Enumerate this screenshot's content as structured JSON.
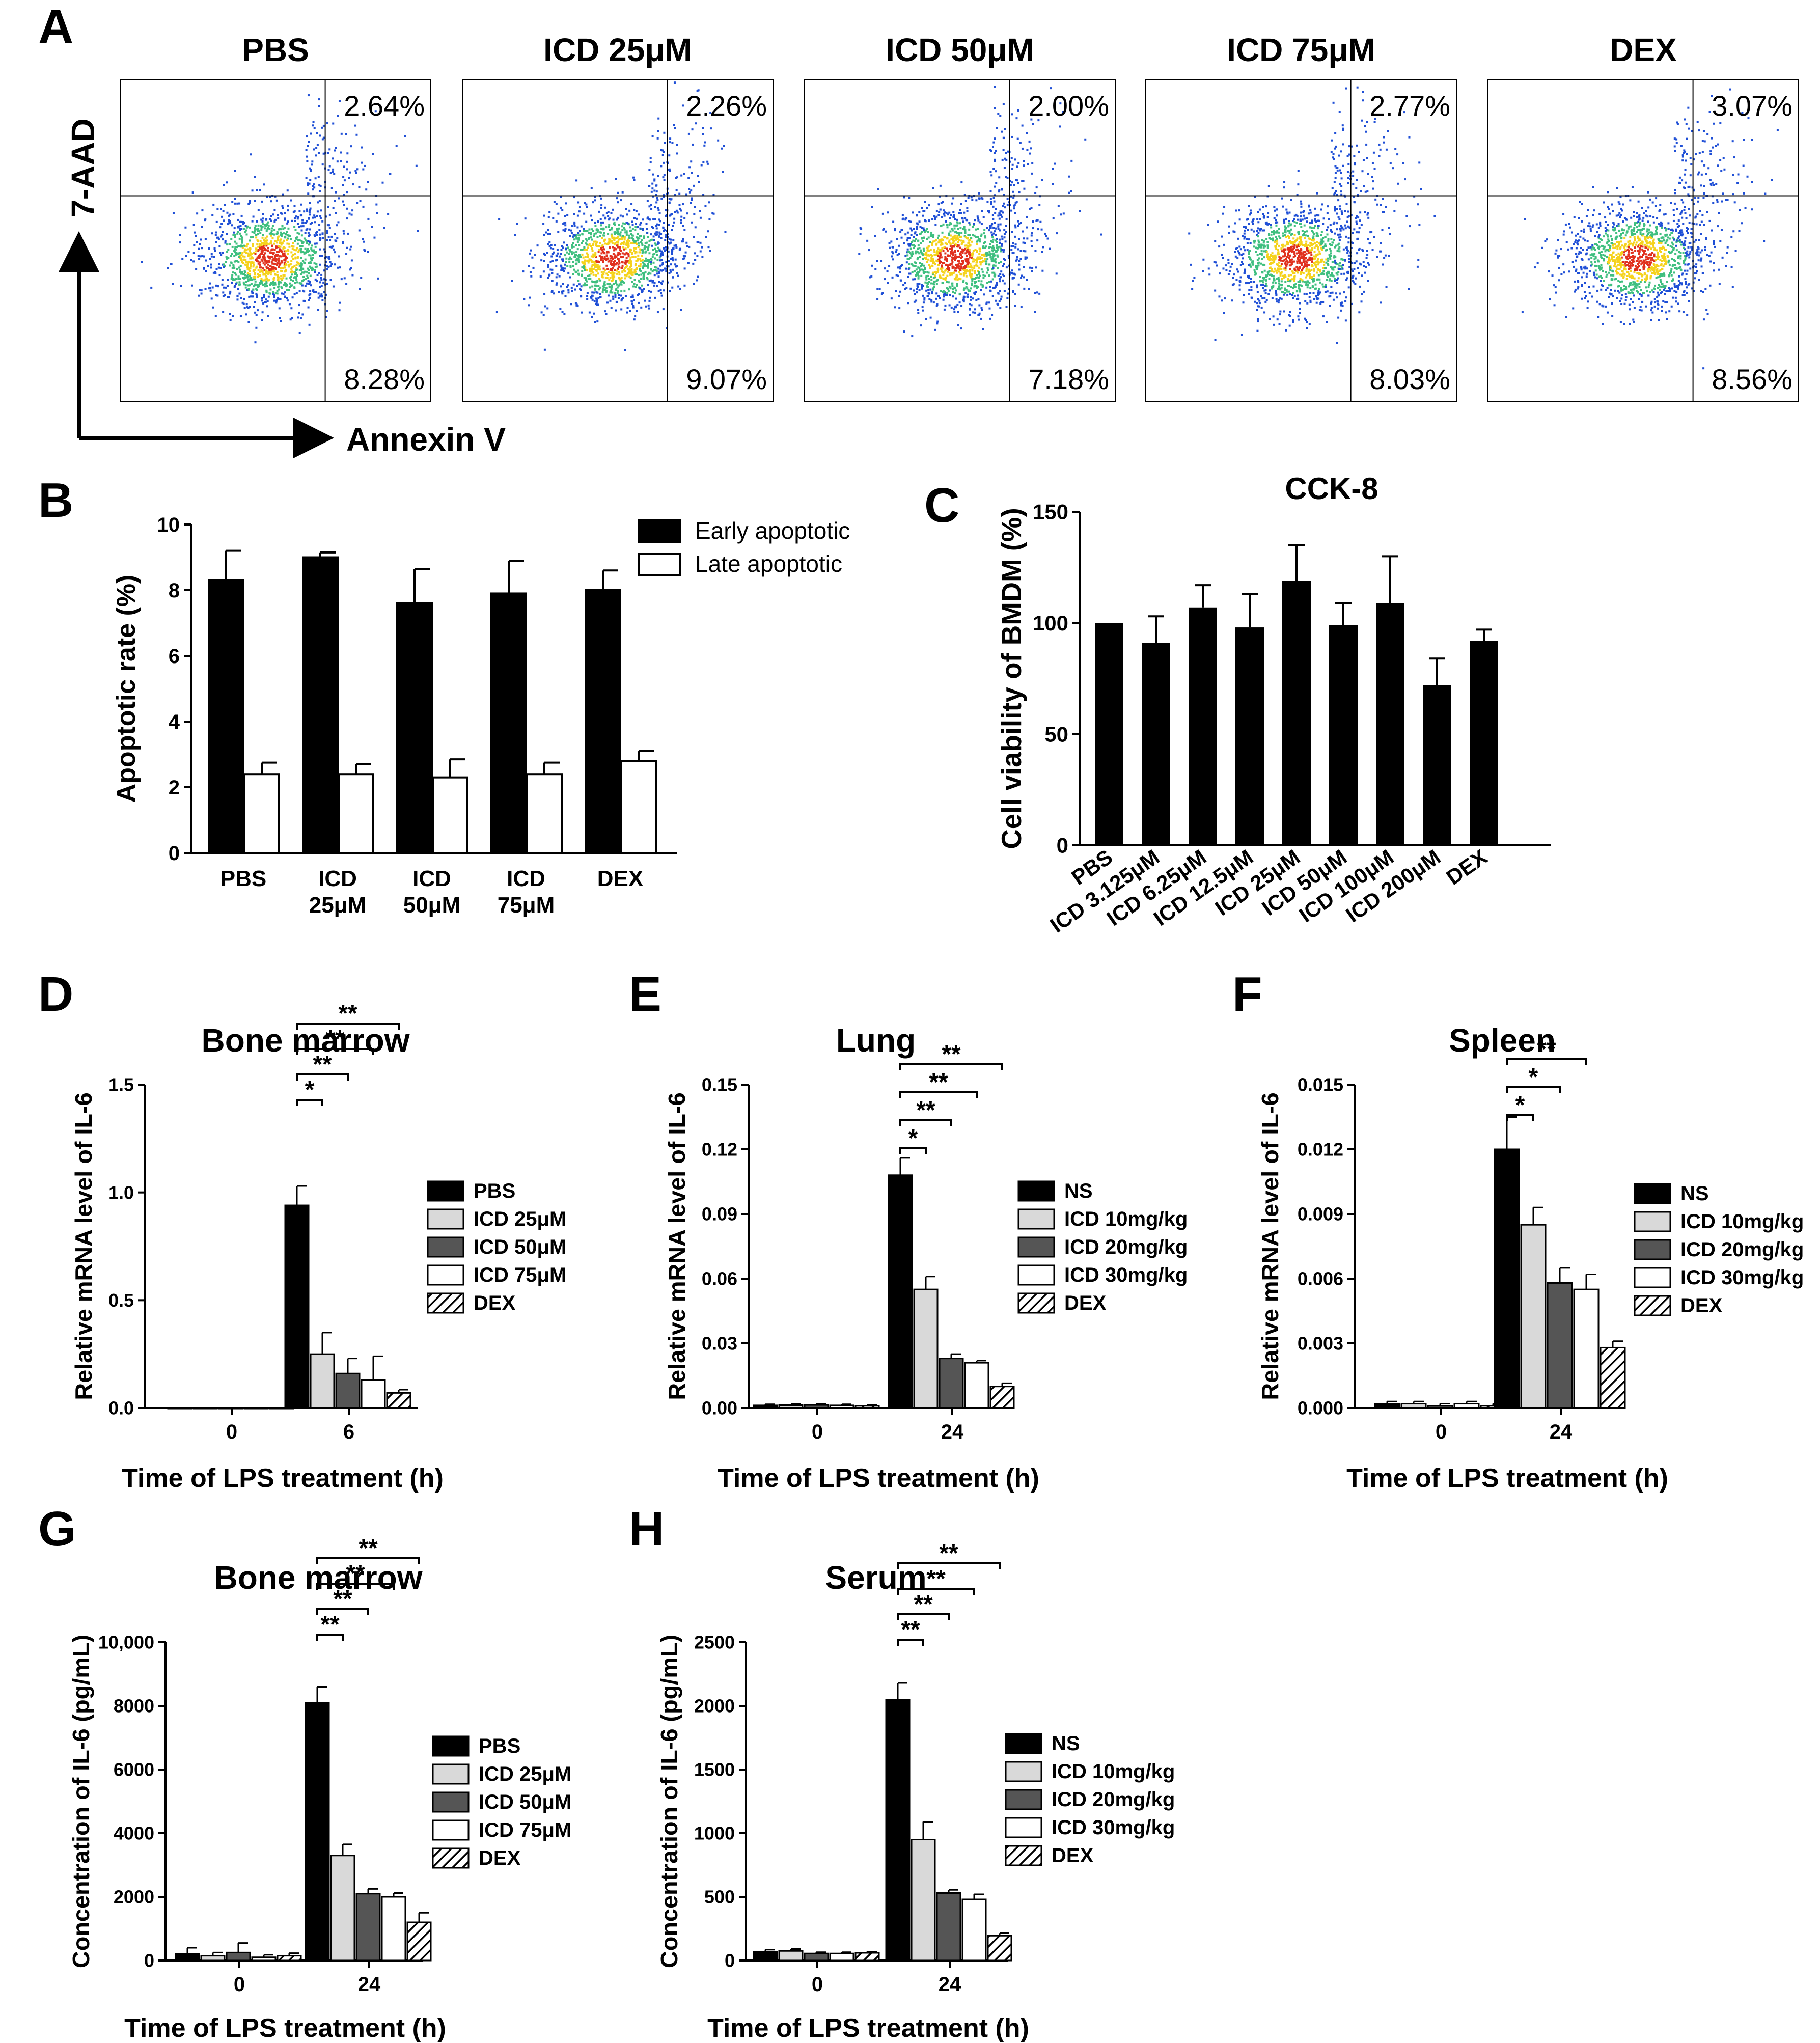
{
  "figure": {
    "panel_letters": [
      "A",
      "B",
      "C",
      "D",
      "E",
      "F",
      "G",
      "H"
    ],
    "colors": {
      "black": "#000000",
      "light_gray": "#d9d9d9",
      "dark_gray": "#555555",
      "white": "#ffffff",
      "density_high": "#e0301e",
      "density_mid": "#f5d21c",
      "density_low_mid": "#3fbf7f",
      "density_low": "#1f4fd6"
    }
  },
  "chart_data": [
    {
      "id": "A",
      "type": "scatter",
      "subtype": "flow-cytometry",
      "xlabel": "Annexin V",
      "ylabel": "7-AAD",
      "panels": [
        {
          "title": "PBS",
          "upper_right": "2.64%",
          "lower_right": "8.28%"
        },
        {
          "title": "ICD 25μM",
          "upper_right": "2.26%",
          "lower_right": "9.07%"
        },
        {
          "title": "ICD 50μM",
          "upper_right": "2.00%",
          "lower_right": "7.18%"
        },
        {
          "title": "ICD 75μM",
          "upper_right": "2.77%",
          "lower_right": "8.03%"
        },
        {
          "title": "DEX",
          "upper_right": "3.07%",
          "lower_right": "8.56%"
        }
      ]
    },
    {
      "id": "B",
      "type": "bar",
      "ylabel": "Apoptotic rate (%)",
      "ylim": [
        0,
        10
      ],
      "yticks": [
        0,
        2,
        4,
        6,
        8,
        10
      ],
      "categories": [
        [
          "PBS"
        ],
        [
          "ICD",
          "25μM"
        ],
        [
          "ICD",
          "50μM"
        ],
        [
          "ICD",
          "75μM"
        ],
        [
          "DEX"
        ]
      ],
      "series": [
        {
          "name": "Early apoptotic",
          "color": "#000000",
          "values": [
            8.3,
            9.0,
            7.6,
            7.9,
            8.0
          ],
          "errors": [
            0.9,
            0.15,
            1.05,
            1.0,
            0.6
          ]
        },
        {
          "name": "Late apoptotic",
          "color": "#ffffff",
          "values": [
            2.4,
            2.4,
            2.3,
            2.4,
            2.8
          ],
          "errors": [
            0.35,
            0.3,
            0.55,
            0.35,
            0.3
          ]
        }
      ]
    },
    {
      "id": "C",
      "type": "bar",
      "title": "CCK-8",
      "ylabel": "Cell viability of BMDM (%)",
      "ylim": [
        0,
        150
      ],
      "yticks": [
        0,
        50,
        100,
        150
      ],
      "categories": [
        "PBS",
        "ICD 3.125μM",
        "ICD 6.25μM",
        "ICD 12.5μM",
        "ICD 25μM",
        "ICD 50μM",
        "ICD 100μM",
        "ICD 200μM",
        "DEX"
      ],
      "values": [
        100,
        91,
        107,
        98,
        119,
        99,
        109,
        72,
        92
      ],
      "errors": [
        0,
        12,
        10,
        15,
        16,
        10,
        21,
        12,
        5
      ]
    },
    {
      "id": "D",
      "type": "bar",
      "title": "Bone marrow",
      "xlabel": "Time of LPS treatment (h)",
      "ylabel": "Relative mRNA level of IL-6",
      "ylim": [
        0,
        1.5
      ],
      "yticks": [
        "0.0",
        "0.5",
        "1.0",
        "1.5"
      ],
      "groups": [
        "0",
        "6"
      ],
      "series": [
        {
          "name": "PBS",
          "values": [
            0,
            0.94
          ],
          "errors": [
            0,
            0.09
          ]
        },
        {
          "name": "ICD 25μM",
          "values": [
            0,
            0.25
          ],
          "errors": [
            0,
            0.1
          ]
        },
        {
          "name": "ICD 50μM",
          "values": [
            0,
            0.16
          ],
          "errors": [
            0,
            0.07
          ]
        },
        {
          "name": "ICD 75μM",
          "values": [
            0,
            0.13
          ],
          "errors": [
            0,
            0.11
          ]
        },
        {
          "name": "DEX",
          "values": [
            0,
            0.07
          ],
          "errors": [
            0,
            0.015
          ]
        }
      ],
      "significance": [
        "*",
        "**",
        "**",
        "**"
      ]
    },
    {
      "id": "E",
      "type": "bar",
      "title": "Lung",
      "xlabel": "Time of LPS treatment (h)",
      "ylabel": "Relative mRNA level of IL-6",
      "ylim": [
        0,
        0.15
      ],
      "yticks": [
        "0.00",
        "0.03",
        "0.06",
        "0.09",
        "0.12",
        "0.15"
      ],
      "groups": [
        "0",
        "24"
      ],
      "series": [
        {
          "name": "NS",
          "values": [
            0.0012,
            0.108
          ],
          "errors": [
            0.0005,
            0.008
          ]
        },
        {
          "name": "ICD 10mg/kg",
          "values": [
            0.0013,
            0.055
          ],
          "errors": [
            0.0005,
            0.006
          ]
        },
        {
          "name": "ICD 20mg/kg",
          "values": [
            0.0014,
            0.023
          ],
          "errors": [
            0.0005,
            0.002
          ]
        },
        {
          "name": "ICD 30mg/kg",
          "values": [
            0.0012,
            0.021
          ],
          "errors": [
            0.0005,
            0.001
          ]
        },
        {
          "name": "DEX",
          "values": [
            0.001,
            0.01
          ],
          "errors": [
            0.0004,
            0.0015
          ]
        }
      ],
      "significance": [
        "*",
        "**",
        "**",
        "**"
      ]
    },
    {
      "id": "F",
      "type": "bar",
      "title": "Spleen",
      "xlabel": "Time of LPS treatment (h)",
      "ylabel": "Relative mRNA level of IL-6",
      "ylim": [
        0,
        0.015
      ],
      "yticks": [
        "0.000",
        "0.003",
        "0.006",
        "0.009",
        "0.012",
        "0.015"
      ],
      "groups": [
        "0",
        "24"
      ],
      "series": [
        {
          "name": "NS",
          "values": [
            0.0002,
            0.012
          ],
          "errors": [
            0.0001,
            0.0015
          ]
        },
        {
          "name": "ICD 10mg/kg",
          "values": [
            0.0002,
            0.0085
          ],
          "errors": [
            0.0001,
            0.0008
          ]
        },
        {
          "name": "ICD 20mg/kg",
          "values": [
            0.0001,
            0.0058
          ],
          "errors": [
            0.0001,
            0.0007
          ]
        },
        {
          "name": "ICD 30mg/kg",
          "values": [
            0.0002,
            0.0055
          ],
          "errors": [
            0.0001,
            0.0007
          ]
        },
        {
          "name": "DEX",
          "values": [
            0.0001,
            0.0028
          ],
          "errors": [
            0.0001,
            0.0003
          ]
        }
      ],
      "significance": [
        "*",
        "*",
        "**"
      ]
    },
    {
      "id": "G",
      "type": "bar",
      "title": "Bone marrow",
      "xlabel": "Time of LPS treatment (h)",
      "ylabel": "Concentration of IL-6 (pg/mL)",
      "ylim": [
        0,
        10000
      ],
      "yticks": [
        "0",
        "2000",
        "4000",
        "6000",
        "8000",
        "10,000"
      ],
      "groups": [
        "0",
        "24"
      ],
      "series": [
        {
          "name": "PBS",
          "values": [
            200,
            8100
          ],
          "errors": [
            200,
            500
          ]
        },
        {
          "name": "ICD 25μM",
          "values": [
            150,
            3300
          ],
          "errors": [
            100,
            350
          ]
        },
        {
          "name": "ICD 50μM",
          "values": [
            250,
            2100
          ],
          "errors": [
            300,
            150
          ]
        },
        {
          "name": "ICD 75μM",
          "values": [
            100,
            2000
          ],
          "errors": [
            80,
            120
          ]
        },
        {
          "name": "DEX",
          "values": [
            150,
            1200
          ],
          "errors": [
            80,
            300
          ]
        }
      ],
      "significance": [
        "**",
        "**",
        "**",
        "**"
      ]
    },
    {
      "id": "H",
      "type": "bar",
      "title": "Serum",
      "xlabel": "Time of LPS treatment (h)",
      "ylabel": "Concentration of IL-6 (pg/mL)",
      "ylim": [
        0,
        2500
      ],
      "yticks": [
        "0",
        "500",
        "1000",
        "1500",
        "2000",
        "2500"
      ],
      "groups": [
        "0",
        "24"
      ],
      "series": [
        {
          "name": "NS",
          "values": [
            70,
            2050
          ],
          "errors": [
            15,
            130
          ]
        },
        {
          "name": "ICD 10mg/kg",
          "values": [
            75,
            950
          ],
          "errors": [
            15,
            140
          ]
        },
        {
          "name": "ICD 20mg/kg",
          "values": [
            55,
            530
          ],
          "errors": [
            10,
            25
          ]
        },
        {
          "name": "ICD 30mg/kg",
          "values": [
            55,
            480
          ],
          "errors": [
            10,
            40
          ]
        },
        {
          "name": "DEX",
          "values": [
            60,
            195
          ],
          "errors": [
            10,
            20
          ]
        }
      ],
      "significance": [
        "**",
        "**",
        "**",
        "**"
      ]
    }
  ]
}
